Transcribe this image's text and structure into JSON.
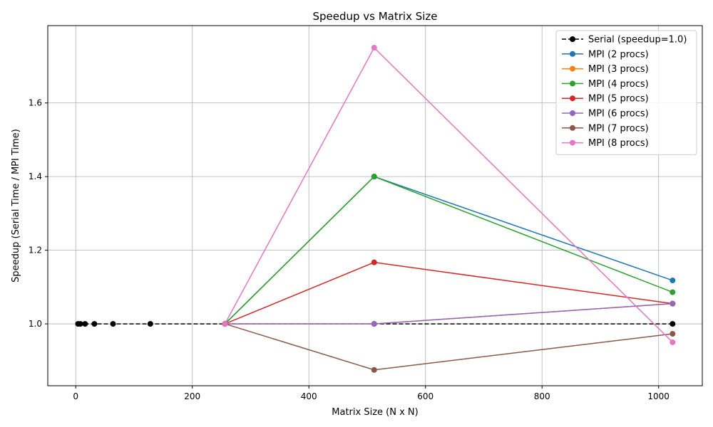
{
  "chart_data": {
    "type": "line",
    "title": "Speedup vs Matrix Size",
    "xlabel": "Matrix Size (N x N)",
    "ylabel": "Speedup (Serial Time / MPI Time)",
    "xlim": [
      -48,
      1075
    ],
    "ylim": [
      0.832,
      1.81
    ],
    "xticks": [
      0,
      200,
      400,
      600,
      800,
      1000
    ],
    "yticks": [
      1.0,
      1.2,
      1.4,
      1.6
    ],
    "grid": true,
    "legend_position": "top-right",
    "series": [
      {
        "name": "Serial (speedup=1.0)",
        "color": "#000000",
        "dashed": true,
        "x": [
          4,
          8,
          16,
          32,
          64,
          128,
          256,
          512,
          1024
        ],
        "y": [
          1.0,
          1.0,
          1.0,
          1.0,
          1.0,
          1.0,
          1.0,
          1.0,
          1.0
        ]
      },
      {
        "name": "MPI (2 procs)",
        "color": "#1f77b4",
        "dashed": false,
        "x": [
          256,
          512,
          1024
        ],
        "y": [
          1.0,
          1.4,
          1.118
        ]
      },
      {
        "name": "MPI (3 procs)",
        "color": "#ff7f0e",
        "dashed": false,
        "x": [
          256,
          512,
          1024
        ],
        "y": [
          1.0,
          1.0,
          1.055
        ]
      },
      {
        "name": "MPI (4 procs)",
        "color": "#2ca02c",
        "dashed": false,
        "x": [
          256,
          512,
          1024
        ],
        "y": [
          1.0,
          1.4,
          1.086
        ]
      },
      {
        "name": "MPI (5 procs)",
        "color": "#d62728",
        "dashed": false,
        "x": [
          256,
          512,
          1024
        ],
        "y": [
          1.0,
          1.167,
          1.055
        ]
      },
      {
        "name": "MPI (6 procs)",
        "color": "#9467bd",
        "dashed": false,
        "x": [
          256,
          512,
          1024
        ],
        "y": [
          1.0,
          1.0,
          1.055
        ]
      },
      {
        "name": "MPI (7 procs)",
        "color": "#8c564b",
        "dashed": false,
        "x": [
          256,
          512,
          1024
        ],
        "y": [
          1.0,
          0.875,
          0.973
        ]
      },
      {
        "name": "MPI (8 procs)",
        "color": "#e377c2",
        "dashed": false,
        "x": [
          256,
          512,
          1024
        ],
        "y": [
          1.0,
          1.75,
          0.95
        ]
      }
    ]
  }
}
